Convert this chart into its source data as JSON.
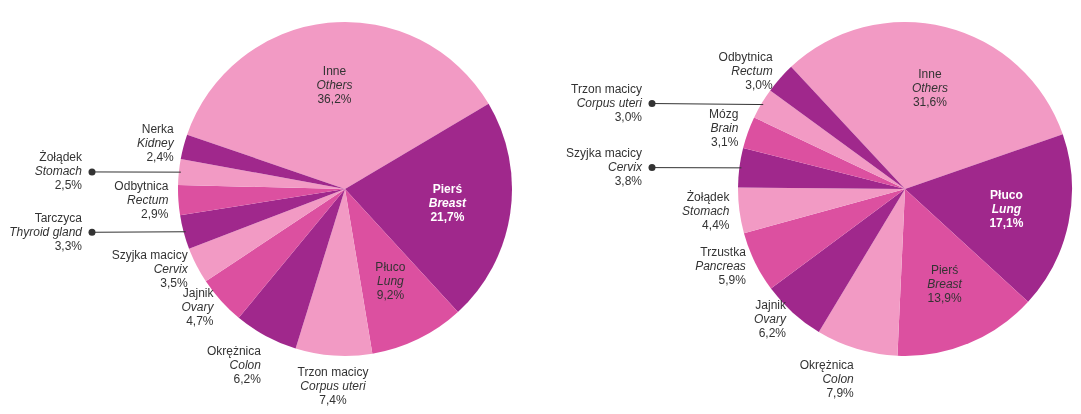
{
  "chart_data": [
    {
      "type": "pie",
      "categories": [
        "Inne\nOthers",
        "Pierś\nBreast",
        "Płuco\nLung",
        "Trzon macicy\nCorpus uteri",
        "Okrężnica\nColon",
        "Jajnik\nOvary",
        "Szyjka macicy\nCervix",
        "Tarczyca\nThyroid gland",
        "Odbytnica\nRectum",
        "Żołądek\nStomach",
        "Nerka\nKidney"
      ],
      "values": [
        36.2,
        21.7,
        9.2,
        7.4,
        6.2,
        4.7,
        3.5,
        3.3,
        2.9,
        2.5,
        2.4
      ],
      "value_labels": [
        "36,2%",
        "21,7%",
        "9,2%",
        "7,4%",
        "6,2%",
        "4,7%",
        "3,5%",
        "3,3%",
        "2,9%",
        "2,5%",
        "2,4%"
      ],
      "colors": [
        "#f29ac4",
        "#a0288c",
        "#dc50a0",
        "#f29ac4",
        "#a0288c",
        "#dc50a0",
        "#f29ac4",
        "#a0288c",
        "#dc50a0",
        "#f29ac4",
        "#a0288c"
      ],
      "legend": false
    },
    {
      "type": "pie",
      "categories": [
        "Inne\nOthers",
        "Płuco\nLung",
        "Pierś\nBreast",
        "Okrężnica\nColon",
        "Jajnik\nOvary",
        "Trzustka\nPancreas",
        "Żołądek\nStomach",
        "Szyjka macicy\nCervix",
        "Mózg\nBrain",
        "Trzon macicy\nCorpus uteri",
        "Odbytnica\nRectum"
      ],
      "values": [
        31.6,
        17.1,
        13.9,
        7.9,
        6.2,
        5.9,
        4.4,
        3.8,
        3.1,
        3.0,
        3.0
      ],
      "value_labels": [
        "31,6%",
        "17,1%",
        "13,9%",
        "7,9%",
        "6,2%",
        "5,9%",
        "4,4%",
        "3,8%",
        "3,1%",
        "3,0%",
        "3,0%"
      ],
      "colors": [
        "#f29ac4",
        "#a0288c",
        "#dc50a0",
        "#f29ac4",
        "#a0288c",
        "#dc50a0",
        "#f29ac4",
        "#a0288c",
        "#dc50a0",
        "#f29ac4",
        "#a0288c"
      ],
      "legend": false
    }
  ]
}
